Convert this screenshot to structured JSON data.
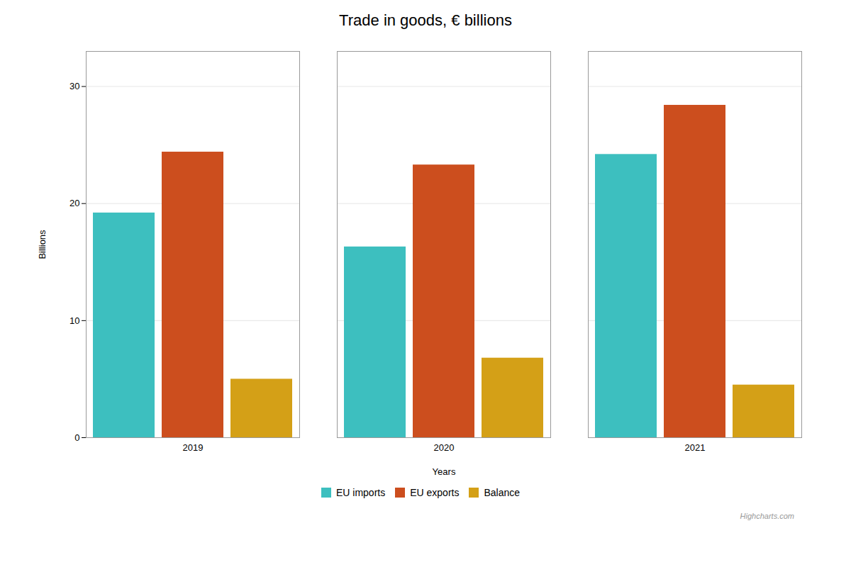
{
  "chart_data": {
    "type": "bar",
    "title": "Trade in goods, € billions",
    "xlabel": "Years",
    "ylabel": "Billions",
    "categories": [
      "2019",
      "2020",
      "2021"
    ],
    "series": [
      {
        "name": "EU imports",
        "color": "#3DBFBF",
        "values": [
          19.2,
          16.3,
          24.2
        ]
      },
      {
        "name": "EU exports",
        "color": "#CC4E1E",
        "values": [
          24.4,
          23.3,
          28.4
        ]
      },
      {
        "name": "Balance",
        "color": "#D4A017",
        "values": [
          5.0,
          6.8,
          4.5
        ]
      }
    ],
    "ylim": [
      0,
      33
    ],
    "yticks": [
      0,
      10,
      20,
      30
    ],
    "grid": true,
    "legend": "bottom",
    "annotations": [
      "Highcharts.com"
    ]
  }
}
